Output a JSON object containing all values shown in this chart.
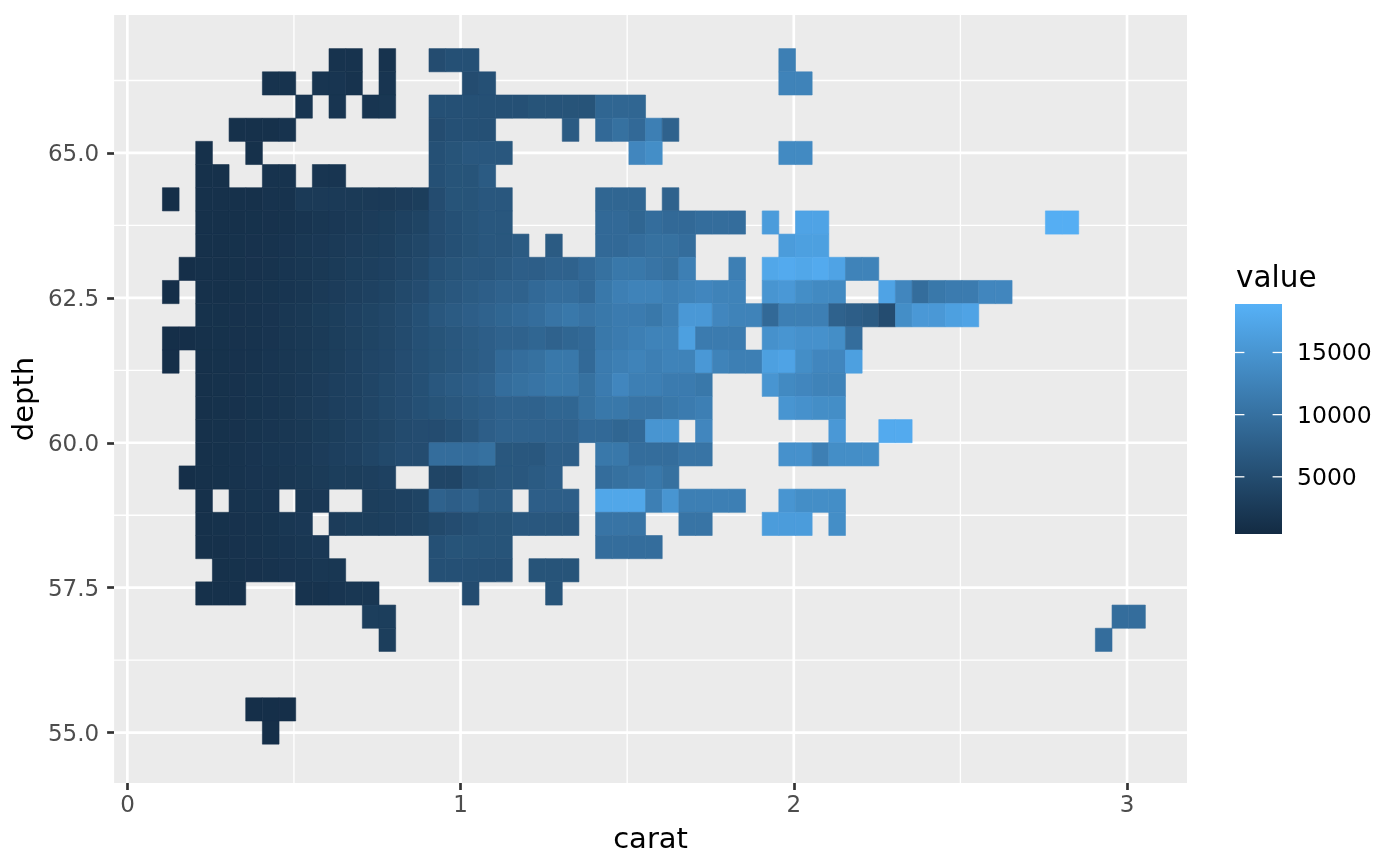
{
  "chart_data": {
    "type": "scatter",
    "marker": "square",
    "xlabel": "carat",
    "ylabel": "depth",
    "clabel": "value",
    "xlim": [
      -0.04,
      3.18
    ],
    "xticks": [
      0,
      1,
      2,
      3
    ],
    "ylim": [
      54.13,
      67.38
    ],
    "yticks": [
      {
        "value": 55,
        "label": "55.0"
      },
      57.5,
      {
        "value": 60,
        "label": "60.0"
      },
      62.5,
      {
        "value": 65,
        "label": "65.0"
      }
    ],
    "clim": [
      400,
      18900
    ],
    "cticks": [
      5000,
      10000,
      15000
    ],
    "grid": true,
    "x": [
      0.63,
      0.68,
      0.78,
      0.93,
      0.98,
      1.03,
      1.98,
      0.43,
      0.48,
      0.58,
      0.63,
      0.68,
      0.78,
      1.03,
      1.08,
      1.98,
      2.03,
      0.53,
      0.63,
      0.73,
      0.78,
      0.93,
      0.98,
      1.03,
      1.08,
      1.13,
      1.18,
      1.23,
      1.28,
      1.33,
      1.38,
      1.43,
      1.48,
      1.53,
      0.33,
      0.38,
      0.43,
      0.48,
      0.93,
      0.98,
      1.03,
      1.08,
      1.33,
      1.43,
      1.48,
      1.53,
      1.58,
      1.63,
      0.23,
      0.38,
      0.93,
      0.98,
      1.03,
      1.08,
      1.13,
      1.53,
      1.58,
      1.98,
      2.03,
      0.23,
      0.28,
      0.43,
      0.48,
      0.58,
      0.63,
      0.93,
      0.98,
      1.03,
      1.08,
      0.13,
      0.23,
      0.28,
      0.33,
      0.38,
      0.43,
      0.48,
      0.53,
      0.58,
      0.63,
      0.68,
      0.73,
      0.78,
      0.83,
      0.88,
      0.93,
      0.98,
      1.03,
      1.08,
      1.13,
      1.43,
      1.48,
      1.53,
      1.63,
      0.23,
      0.28,
      0.33,
      0.38,
      0.43,
      0.48,
      0.53,
      0.58,
      0.63,
      0.68,
      0.73,
      0.78,
      0.83,
      0.88,
      0.93,
      0.98,
      1.03,
      1.08,
      1.13,
      1.43,
      1.48,
      1.53,
      1.58,
      1.63,
      1.68,
      1.73,
      1.78,
      1.83,
      1.93,
      2.03,
      2.08,
      2.78,
      2.83,
      0.23,
      0.28,
      0.33,
      0.38,
      0.43,
      0.48,
      0.53,
      0.58,
      0.63,
      0.68,
      0.73,
      0.78,
      0.83,
      0.88,
      0.93,
      0.98,
      1.03,
      1.08,
      1.13,
      1.18,
      1.28,
      1.43,
      1.48,
      1.53,
      1.58,
      1.63,
      1.68,
      1.98,
      2.03,
      2.08,
      0.18,
      0.23,
      0.28,
      0.33,
      0.38,
      0.43,
      0.48,
      0.53,
      0.58,
      0.63,
      0.68,
      0.73,
      0.78,
      0.83,
      0.88,
      0.93,
      0.98,
      1.03,
      1.08,
      1.13,
      1.18,
      1.23,
      1.28,
      1.33,
      1.38,
      1.43,
      1.48,
      1.53,
      1.58,
      1.63,
      1.68,
      1.83,
      1.93,
      1.98,
      2.03,
      2.08,
      2.13,
      2.18,
      2.23,
      0.13,
      0.23,
      0.28,
      0.33,
      0.38,
      0.43,
      0.48,
      0.53,
      0.58,
      0.63,
      0.68,
      0.73,
      0.78,
      0.83,
      0.88,
      0.93,
      0.98,
      1.03,
      1.08,
      1.13,
      1.18,
      1.23,
      1.28,
      1.33,
      1.38,
      1.43,
      1.48,
      1.53,
      1.58,
      1.63,
      1.68,
      1.73,
      1.78,
      1.83,
      1.93,
      1.98,
      2.03,
      2.08,
      2.13,
      2.28,
      2.33,
      2.38,
      2.43,
      2.48,
      2.53,
      2.58,
      2.63,
      0.23,
      0.28,
      0.33,
      0.38,
      0.43,
      0.48,
      0.53,
      0.58,
      0.63,
      0.68,
      0.73,
      0.78,
      0.83,
      0.88,
      0.93,
      0.98,
      1.03,
      1.08,
      1.13,
      1.18,
      1.23,
      1.28,
      1.33,
      1.38,
      1.43,
      1.48,
      1.53,
      1.58,
      1.63,
      1.68,
      1.73,
      1.78,
      1.83,
      1.88,
      1.93,
      1.98,
      2.03,
      2.08,
      2.13,
      2.18,
      2.23,
      2.28,
      2.33,
      2.38,
      2.43,
      2.48,
      2.53,
      0.13,
      0.18,
      0.23,
      0.28,
      0.33,
      0.38,
      0.43,
      0.48,
      0.53,
      0.58,
      0.63,
      0.68,
      0.73,
      0.78,
      0.83,
      0.88,
      0.93,
      0.98,
      1.03,
      1.08,
      1.13,
      1.18,
      1.23,
      1.28,
      1.33,
      1.38,
      1.43,
      1.48,
      1.53,
      1.58,
      1.63,
      1.68,
      1.73,
      1.78,
      1.83,
      1.93,
      1.98,
      2.03,
      2.08,
      2.13,
      2.18,
      0.13,
      0.23,
      0.28,
      0.33,
      0.38,
      0.43,
      0.48,
      0.53,
      0.58,
      0.63,
      0.68,
      0.73,
      0.78,
      0.83,
      0.88,
      0.93,
      0.98,
      1.03,
      1.08,
      1.13,
      1.18,
      1.23,
      1.28,
      1.33,
      1.38,
      1.43,
      1.48,
      1.53,
      1.58,
      1.63,
      1.68,
      1.73,
      1.78,
      1.83,
      1.88,
      1.93,
      1.98,
      2.03,
      2.08,
      2.13,
      2.18,
      0.23,
      0.28,
      0.33,
      0.38,
      0.43,
      0.48,
      0.53,
      0.58,
      0.63,
      0.68,
      0.73,
      0.78,
      0.83,
      0.88,
      0.93,
      0.98,
      1.03,
      1.08,
      1.13,
      1.18,
      1.23,
      1.28,
      1.33,
      1.38,
      1.43,
      1.48,
      1.53,
      1.58,
      1.63,
      1.68,
      1.73,
      1.93,
      1.98,
      2.03,
      2.08,
      2.13,
      0.23,
      0.28,
      0.33,
      0.38,
      0.43,
      0.48,
      0.53,
      0.58,
      0.63,
      0.68,
      0.73,
      0.78,
      0.83,
      0.88,
      0.93,
      0.98,
      1.03,
      1.08,
      1.13,
      1.18,
      1.23,
      1.28,
      1.33,
      1.38,
      1.43,
      1.48,
      1.53,
      1.58,
      1.63,
      1.68,
      1.73,
      1.98,
      2.03,
      2.08,
      2.13,
      0.23,
      0.28,
      0.33,
      0.38,
      0.43,
      0.48,
      0.53,
      0.58,
      0.63,
      0.68,
      0.73,
      0.78,
      0.83,
      0.88,
      0.93,
      0.98,
      1.03,
      1.08,
      1.13,
      1.18,
      1.23,
      1.28,
      1.33,
      1.38,
      1.43,
      1.48,
      1.53,
      1.58,
      1.63,
      1.73,
      2.13,
      2.28,
      2.33,
      0.23,
      0.28,
      0.33,
      0.38,
      0.43,
      0.48,
      0.53,
      0.58,
      0.63,
      0.68,
      0.73,
      0.78,
      0.83,
      0.88,
      0.93,
      0.98,
      1.03,
      1.08,
      1.13,
      1.18,
      1.23,
      1.28,
      1.33,
      1.43,
      1.48,
      1.53,
      1.58,
      1.63,
      1.68,
      1.73,
      1.98,
      2.03,
      2.08,
      2.13,
      2.18,
      2.23,
      0.18,
      0.23,
      0.28,
      0.33,
      0.38,
      0.43,
      0.48,
      0.53,
      0.58,
      0.63,
      0.68,
      0.73,
      0.78,
      0.93,
      0.98,
      1.03,
      1.08,
      1.13,
      1.18,
      1.23,
      1.28,
      1.43,
      1.48,
      1.53,
      1.58,
      1.63,
      0.23,
      0.33,
      0.38,
      0.43,
      0.53,
      0.58,
      0.73,
      0.78,
      0.83,
      0.88,
      0.93,
      0.98,
      1.03,
      1.08,
      1.13,
      1.23,
      1.28,
      1.33,
      1.43,
      1.48,
      1.53,
      1.58,
      1.63,
      1.68,
      1.73,
      1.78,
      1.83,
      1.98,
      2.03,
      2.08,
      2.13,
      0.23,
      0.28,
      0.33,
      0.38,
      0.43,
      0.48,
      0.53,
      0.63,
      0.68,
      0.73,
      0.78,
      0.83,
      0.88,
      0.93,
      0.98,
      1.03,
      1.08,
      1.13,
      1.18,
      1.23,
      1.28,
      1.33,
      1.43,
      1.48,
      1.53,
      1.68,
      1.73,
      1.93,
      1.98,
      2.03,
      2.13,
      0.23,
      0.28,
      0.33,
      0.38,
      0.43,
      0.48,
      0.53,
      0.58,
      0.93,
      0.98,
      1.03,
      1.08,
      1.13,
      1.43,
      1.48,
      1.53,
      1.58,
      0.28,
      0.33,
      0.38,
      0.43,
      0.48,
      0.53,
      0.58,
      0.63,
      0.93,
      0.98,
      1.03,
      1.08,
      1.13,
      1.23,
      1.28,
      1.33,
      0.23,
      0.28,
      0.33,
      0.53,
      0.58,
      0.63,
      0.68,
      0.73,
      1.03,
      1.28,
      0.73,
      0.78,
      2.98,
      3.03,
      0.78,
      2.93,
      0.38,
      0.43,
      0.48,
      0.43
    ],
    "values": [
      66.6,
      66.6,
      66.6,
      66.6,
      66.6,
      66.6,
      66.6,
      66.2,
      66.2,
      66.2,
      66.2,
      66.2,
      66.2,
      66.2,
      66.2,
      66.2,
      66.2,
      65.8,
      65.8,
      65.8,
      65.8,
      65.8,
      65.8,
      65.8,
      65.8,
      65.8,
      65.8,
      65.8,
      65.8,
      65.8,
      65.8,
      65.8,
      65.8,
      65.8,
      65.4,
      65.4,
      65.4,
      65.4,
      65.4,
      65.4,
      65.4,
      65.4,
      65.4,
      65.4,
      65.4,
      65.4,
      65.4,
      65.4,
      65,
      65,
      65,
      65,
      65,
      65,
      65,
      65,
      65,
      65,
      65,
      64.6,
      64.6,
      64.6,
      64.6,
      64.6,
      64.6,
      64.6,
      64.6,
      64.6,
      64.6,
      64.2,
      64.2,
      64.2,
      64.2,
      64.2,
      64.2,
      64.2,
      64.2,
      64.2,
      64.2,
      64.2,
      64.2,
      64.2,
      64.2,
      64.2,
      64.2,
      64.2,
      64.2,
      64.2,
      64.2,
      64.2,
      64.2,
      64.2,
      64.2,
      63.8,
      63.8,
      63.8,
      63.8,
      63.8,
      63.8,
      63.8,
      63.8,
      63.8,
      63.8,
      63.8,
      63.8,
      63.8,
      63.8,
      63.8,
      63.8,
      63.8,
      63.8,
      63.8,
      63.8,
      63.8,
      63.8,
      63.8,
      63.8,
      63.8,
      63.8,
      63.8,
      63.8,
      63.8,
      63.8,
      63.8,
      63.8,
      63.8,
      63.4,
      63.4,
      63.4,
      63.4,
      63.4,
      63.4,
      63.4,
      63.4,
      63.4,
      63.4,
      63.4,
      63.4,
      63.4,
      63.4,
      63.4,
      63.4,
      63.4,
      63.4,
      63.4,
      63.4,
      63.4,
      63.4,
      63.4,
      63.4,
      63.4,
      63.4,
      63.4,
      63.4,
      63.4,
      63.4,
      63,
      63,
      63,
      63,
      63,
      63,
      63,
      63,
      63,
      63,
      63,
      63,
      63,
      63,
      63,
      63,
      63,
      63,
      63,
      63,
      63,
      63,
      63,
      63,
      63,
      63,
      63,
      63,
      63,
      63,
      63,
      63,
      63,
      63,
      63,
      63,
      63,
      63,
      63,
      62.6,
      62.6,
      62.6,
      62.6,
      62.6,
      62.6,
      62.6,
      62.6,
      62.6,
      62.6,
      62.6,
      62.6,
      62.6,
      62.6,
      62.6,
      62.6,
      62.6,
      62.6,
      62.6,
      62.6,
      62.6,
      62.6,
      62.6,
      62.6,
      62.6,
      62.6,
      62.6,
      62.6,
      62.6,
      62.6,
      62.6,
      62.6,
      62.6,
      62.6,
      62.6,
      62.6,
      62.6,
      62.6,
      62.6,
      62.6,
      62.6,
      62.6,
      62.6,
      62.6,
      62.6,
      62.6,
      62.6,
      62.2,
      62.2,
      62.2,
      62.2,
      62.2,
      62.2,
      62.2,
      62.2,
      62.2,
      62.2,
      62.2,
      62.2,
      62.2,
      62.2,
      62.2,
      62.2,
      62.2,
      62.2,
      62.2,
      62.2,
      62.2,
      62.2,
      62.2,
      62.2,
      62.2,
      62.2,
      62.2,
      62.2,
      62.2,
      62.2,
      62.2,
      62.2,
      62.2,
      62.2,
      62.2,
      62.2,
      62.2,
      62.2,
      62.2,
      62.2,
      62.2,
      62.2,
      62.2,
      62.2,
      62.2,
      62.2,
      62.2,
      61.8,
      61.8,
      61.8,
      61.8,
      61.8,
      61.8,
      61.8,
      61.8,
      61.8,
      61.8,
      61.8,
      61.8,
      61.8,
      61.8,
      61.8,
      61.8,
      61.8,
      61.8,
      61.8,
      61.8,
      61.8,
      61.8,
      61.8,
      61.8,
      61.8,
      61.8,
      61.8,
      61.8,
      61.8,
      61.8,
      61.8,
      61.8,
      61.8,
      61.8,
      61.8,
      61.8,
      61.8,
      61.8,
      61.8,
      61.8,
      61.8,
      61.4,
      61.4,
      61.4,
      61.4,
      61.4,
      61.4,
      61.4,
      61.4,
      61.4,
      61.4,
      61.4,
      61.4,
      61.4,
      61.4,
      61.4,
      61.4,
      61.4,
      61.4,
      61.4,
      61.4,
      61.4,
      61.4,
      61.4,
      61.4,
      61.4,
      61.4,
      61.4,
      61.4,
      61.4,
      61.4,
      61.4,
      61.4,
      61.4,
      61.4,
      61.4,
      61.4,
      61.4,
      61.4,
      61.4,
      61.4,
      61.4,
      61,
      61,
      61,
      61,
      61,
      61,
      61,
      61,
      61,
      61,
      61,
      61,
      61,
      61,
      61,
      61,
      61,
      61,
      61,
      61,
      61,
      61,
      61,
      61,
      61,
      61,
      61,
      61,
      61,
      61,
      61,
      61,
      61,
      61,
      61,
      61,
      60.6,
      60.6,
      60.6,
      60.6,
      60.6,
      60.6,
      60.6,
      60.6,
      60.6,
      60.6,
      60.6,
      60.6,
      60.6,
      60.6,
      60.6,
      60.6,
      60.6,
      60.6,
      60.6,
      60.6,
      60.6,
      60.6,
      60.6,
      60.6,
      60.6,
      60.6,
      60.6,
      60.6,
      60.6,
      60.6,
      60.6,
      60.6,
      60.6,
      60.6,
      60.6,
      60.2,
      60.2,
      60.2,
      60.2,
      60.2,
      60.2,
      60.2,
      60.2,
      60.2,
      60.2,
      60.2,
      60.2,
      60.2,
      60.2,
      60.2,
      60.2,
      60.2,
      60.2,
      60.2,
      60.2,
      60.2,
      60.2,
      60.2,
      60.2,
      60.2,
      60.2,
      60.2,
      60.2,
      60.2,
      60.2,
      60.2,
      60.2,
      60.2,
      59.8,
      59.8,
      59.8,
      59.8,
      59.8,
      59.8,
      59.8,
      59.8,
      59.8,
      59.8,
      59.8,
      59.8,
      59.8,
      59.8,
      59.8,
      59.8,
      59.8,
      59.8,
      59.8,
      59.8,
      59.8,
      59.8,
      59.8,
      59.8,
      59.8,
      59.8,
      59.8,
      59.8,
      59.8,
      59.8,
      59.8,
      59.8,
      59.8,
      59.8,
      59.8,
      59.8,
      59.4,
      59.4,
      59.4,
      59.4,
      59.4,
      59.4,
      59.4,
      59.4,
      59.4,
      59.4,
      59.4,
      59.4,
      59.4,
      59.4,
      59.4,
      59.4,
      59.4,
      59.4,
      59.4,
      59.4,
      59.4,
      59.4,
      59.4,
      59.4,
      59.4,
      59.4,
      59,
      59,
      59,
      59,
      59,
      59,
      59,
      59,
      59,
      59,
      59,
      59,
      59,
      59,
      59,
      59,
      59,
      59,
      59,
      59,
      59,
      59,
      59,
      59,
      59,
      59,
      59,
      59,
      59,
      59,
      59,
      58.6,
      58.6,
      58.6,
      58.6,
      58.6,
      58.6,
      58.6,
      58.6,
      58.6,
      58.6,
      58.6,
      58.6,
      58.6,
      58.6,
      58.6,
      58.6,
      58.6,
      58.6,
      58.6,
      58.6,
      58.6,
      58.6,
      58.6,
      58.6,
      58.6,
      58.6,
      58.6,
      58.6,
      58.6,
      58.6,
      58.6,
      58.2,
      58.2,
      58.2,
      58.2,
      58.2,
      58.2,
      58.2,
      58.2,
      58.2,
      58.2,
      58.2,
      58.2,
      58.2,
      58.2,
      58.2,
      58.2,
      58.2,
      57.8,
      57.8,
      57.8,
      57.8,
      57.8,
      57.8,
      57.8,
      57.8,
      57.8,
      57.8,
      57.8,
      57.8,
      57.8,
      57.8,
      57.8,
      57.8,
      57.4,
      57.4,
      57.4,
      57.4,
      57.4,
      57.4,
      57.4,
      57.4,
      57.4,
      57.4,
      57,
      57,
      57,
      57,
      56.6,
      56.6,
      55.4,
      55.4,
      55.4,
      55
    ],
    "cvalues": [
      1500,
      1500,
      1500,
      5000,
      5500,
      5500,
      12000,
      1500,
      1500,
      1800,
      1800,
      1500,
      1800,
      5000,
      5500,
      12500,
      12500,
      1800,
      1800,
      1800,
      2000,
      5500,
      5500,
      5500,
      5500,
      5500,
      5500,
      6000,
      6000,
      6000,
      6000,
      8500,
      8500,
      8500,
      1200,
      1200,
      1200,
      1500,
      5000,
      5500,
      5500,
      5500,
      7000,
      9000,
      10000,
      9000,
      12000,
      8000,
      1200,
      1200,
      5500,
      6000,
      6500,
      6500,
      6500,
      13000,
      14000,
      13500,
      13500,
      1200,
      1200,
      1500,
      1500,
      1800,
      1800,
      5500,
      6000,
      6000,
      7000,
      1000,
      1200,
      1200,
      1200,
      1200,
      1500,
      1500,
      2500,
      2500,
      2500,
      2500,
      2500,
      2500,
      2800,
      3000,
      5000,
      6000,
      6000,
      6500,
      6500,
      8500,
      8500,
      8500,
      8000,
      1200,
      1200,
      1200,
      1300,
      1400,
      1500,
      1800,
      2000,
      2200,
      2500,
      2800,
      3000,
      3500,
      3800,
      5000,
      5500,
      6000,
      6500,
      6500,
      9000,
      9000,
      8500,
      9500,
      9000,
      9000,
      9500,
      9500,
      9500,
      16000,
      17000,
      17000,
      18500,
      18500,
      1200,
      1200,
      1300,
      1400,
      1500,
      1700,
      2000,
      2200,
      2500,
      2800,
      3000,
      3200,
      3800,
      4200,
      5000,
      5500,
      6000,
      6500,
      6500,
      7000,
      7000,
      9000,
      9000,
      9500,
      10000,
      10000,
      9500,
      16000,
      16500,
      16500,
      1000,
      1200,
      1200,
      1300,
      1400,
      1500,
      1800,
      2000,
      2300,
      2600,
      3000,
      3200,
      3500,
      4000,
      4500,
      5500,
      6000,
      6500,
      6500,
      7000,
      7500,
      7500,
      8000,
      8000,
      9000,
      10000,
      11000,
      11000,
      10500,
      10000,
      12000,
      12000,
      17500,
      18000,
      17500,
      18000,
      17000,
      12500,
      12500,
      1000,
      1200,
      1200,
      1300,
      1500,
      1600,
      1800,
      2000,
      2500,
      2800,
      3200,
      3500,
      3800,
      4500,
      5000,
      6000,
      6500,
      7000,
      7500,
      8000,
      8000,
      9000,
      9500,
      9500,
      9000,
      11000,
      12000,
      12500,
      12500,
      12000,
      12500,
      13000,
      12500,
      12500,
      15000,
      15500,
      14000,
      13500,
      13500,
      17000,
      13000,
      9500,
      11000,
      11500,
      11500,
      13000,
      13000,
      1300,
      1300,
      1400,
      1500,
      1700,
      2000,
      2300,
      2700,
      3000,
      3500,
      3800,
      4200,
      4800,
      5500,
      6500,
      7000,
      7500,
      8000,
      8500,
      9000,
      9500,
      10500,
      11000,
      10500,
      11000,
      11500,
      11500,
      11000,
      12000,
      15500,
      15500,
      13000,
      12500,
      12500,
      9000,
      12000,
      12000,
      12000,
      8000,
      7500,
      7000,
      5000,
      14000,
      15500,
      15500,
      16500,
      17000,
      1000,
      1000,
      1200,
      1300,
      1400,
      1500,
      1700,
      2000,
      2300,
      2600,
      3000,
      3400,
      3800,
      4200,
      4800,
      5500,
      6000,
      6500,
      7000,
      7500,
      8000,
      8000,
      8500,
      8000,
      8500,
      9000,
      11000,
      11500,
      12000,
      12500,
      12500,
      16500,
      11500,
      11500,
      11500,
      14500,
      15000,
      14500,
      14500,
      14000,
      9500,
      1000,
      1200,
      1300,
      1400,
      1500,
      1800,
      2000,
      2300,
      2700,
      3000,
      3500,
      4000,
      4300,
      5000,
      5500,
      6000,
      6500,
      7000,
      7500,
      9000,
      9500,
      10000,
      11000,
      11000,
      9000,
      11500,
      12000,
      12500,
      12000,
      12500,
      12500,
      15500,
      12500,
      12000,
      12000,
      16500,
      17000,
      14000,
      13000,
      13000,
      16500,
      1200,
      1300,
      1400,
      1600,
      1800,
      2000,
      2400,
      2800,
      3200,
      3500,
      4000,
      4500,
      5000,
      5500,
      6500,
      7000,
      7500,
      8000,
      9500,
      10000,
      10500,
      11000,
      11000,
      10000,
      11500,
      13000,
      12000,
      12000,
      11500,
      11500,
      11000,
      15000,
      13500,
      13000,
      12500,
      12500,
      1200,
      1300,
      1400,
      1600,
      1800,
      2000,
      2500,
      2800,
      3200,
      3500,
      4000,
      4500,
      5000,
      5500,
      6000,
      6500,
      7000,
      7500,
      8000,
      8000,
      8000,
      8500,
      8500,
      10000,
      11000,
      11000,
      10500,
      10500,
      11000,
      11500,
      12000,
      15000,
      14500,
      14000,
      14000,
      1200,
      1300,
      1400,
      1600,
      1800,
      2000,
      2300,
      2700,
      3000,
      3500,
      3800,
      4200,
      4800,
      5000,
      5000,
      5500,
      6500,
      7500,
      8000,
      8000,
      8000,
      8000,
      8000,
      9000,
      9000,
      8500,
      9000,
      15000,
      15000,
      13000,
      15500,
      18000,
      18000,
      1200,
      1300,
      1500,
      1700,
      1900,
      2100,
      2400,
      2800,
      3200,
      3500,
      4000,
      4500,
      5000,
      5000,
      9500,
      9500,
      9500,
      10000,
      6500,
      6500,
      6500,
      7500,
      7500,
      11000,
      11000,
      9500,
      9500,
      9500,
      10500,
      10500,
      14500,
      14500,
      12000,
      14000,
      14000,
      14000,
      1000,
      1200,
      1300,
      1500,
      1700,
      1800,
      2000,
      2300,
      2600,
      3000,
      3000,
      3200,
      3500,
      4000,
      4000,
      5500,
      6000,
      6500,
      6500,
      7000,
      7500,
      9500,
      10000,
      10500,
      11000,
      10000,
      1200,
      1500,
      1600,
      1700,
      2000,
      2200,
      3000,
      3200,
      3500,
      3800,
      8000,
      7500,
      8000,
      7000,
      7000,
      7500,
      7500,
      7500,
      17500,
      17500,
      17500,
      12000,
      15000,
      12000,
      12000,
      12000,
      12000,
      15000,
      14000,
      14000,
      14000,
      1200,
      1300,
      1400,
      1500,
      1600,
      2000,
      2200,
      2800,
      3000,
      3000,
      3200,
      3500,
      3800,
      4500,
      5000,
      5500,
      6000,
      6000,
      6500,
      6500,
      6500,
      6500,
      10500,
      10500,
      10500,
      10500,
      10500,
      16000,
      16000,
      16000,
      14000,
      1200,
      1200,
      1400,
      1500,
      1600,
      1800,
      2000,
      2200,
      5500,
      6000,
      6000,
      6000,
      6000,
      9500,
      9500,
      9500,
      9500,
      1200,
      1300,
      1400,
      1500,
      1700,
      1800,
      2000,
      2000,
      5500,
      5500,
      5500,
      5500,
      5500,
      6000,
      6000,
      6000,
      1200,
      1200,
      1200,
      1500,
      1500,
      1800,
      2000,
      2000,
      5000,
      6000,
      3000,
      3000,
      9500,
      9500,
      3000,
      9500,
      1000,
      1000,
      1000,
      1000
    ]
  }
}
